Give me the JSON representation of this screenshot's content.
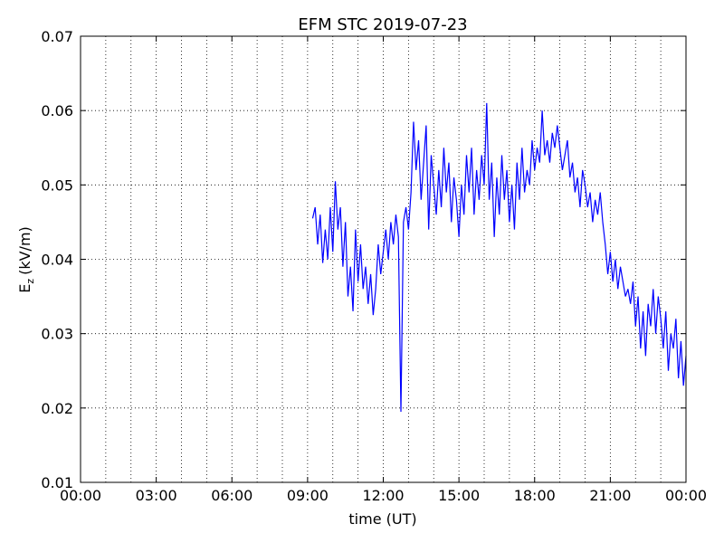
{
  "chart_data": {
    "type": "line",
    "title": "EFM STC    2019-07-23",
    "xlabel": "time (UT)",
    "ylabel": {
      "base": "E",
      "subscript": "z",
      "unit": "(kV/m)"
    },
    "xlim": [
      0,
      24
    ],
    "xticks": [
      {
        "value": 0,
        "label": "00:00"
      },
      {
        "value": 3,
        "label": "03:00"
      },
      {
        "value": 6,
        "label": "06:00"
      },
      {
        "value": 9,
        "label": "09:00"
      },
      {
        "value": 12,
        "label": "12:00"
      },
      {
        "value": 15,
        "label": "15:00"
      },
      {
        "value": 18,
        "label": "18:00"
      },
      {
        "value": 21,
        "label": "21:00"
      },
      {
        "value": 24,
        "label": "00:00"
      }
    ],
    "xgrid": [
      1,
      2,
      3,
      4,
      5,
      6,
      7,
      8,
      9,
      10,
      11,
      12,
      13,
      14,
      15,
      16,
      17,
      18,
      19,
      20,
      21,
      22,
      23
    ],
    "ylim": [
      0.01,
      0.07
    ],
    "yticks": [
      0.01,
      0.02,
      0.03,
      0.04,
      0.05,
      0.06,
      0.07
    ],
    "grid": true,
    "series": [
      {
        "name": "Ez",
        "color": "#0000ff",
        "x": [
          9.2,
          9.3,
          9.4,
          9.5,
          9.6,
          9.7,
          9.8,
          9.9,
          10.0,
          10.1,
          10.2,
          10.3,
          10.4,
          10.5,
          10.6,
          10.7,
          10.8,
          10.9,
          11.0,
          11.1,
          11.2,
          11.3,
          11.4,
          11.5,
          11.6,
          11.7,
          11.8,
          11.9,
          12.0,
          12.1,
          12.2,
          12.3,
          12.4,
          12.5,
          12.6,
          12.7,
          12.8,
          12.9,
          13.0,
          13.1,
          13.2,
          13.3,
          13.4,
          13.5,
          13.6,
          13.7,
          13.8,
          13.9,
          14.0,
          14.1,
          14.2,
          14.3,
          14.4,
          14.5,
          14.6,
          14.7,
          14.8,
          14.9,
          15.0,
          15.1,
          15.2,
          15.3,
          15.4,
          15.5,
          15.6,
          15.7,
          15.8,
          15.9,
          16.0,
          16.1,
          16.2,
          16.3,
          16.4,
          16.5,
          16.6,
          16.7,
          16.8,
          16.9,
          17.0,
          17.1,
          17.2,
          17.3,
          17.4,
          17.5,
          17.6,
          17.7,
          17.8,
          17.9,
          18.0,
          18.1,
          18.2,
          18.3,
          18.4,
          18.5,
          18.6,
          18.7,
          18.8,
          18.9,
          19.0,
          19.1,
          19.2,
          19.3,
          19.4,
          19.5,
          19.6,
          19.7,
          19.8,
          19.9,
          20.0,
          20.1,
          20.2,
          20.3,
          20.4,
          20.5,
          20.6,
          20.7,
          20.8,
          20.9,
          21.0,
          21.1,
          21.2,
          21.3,
          21.4,
          21.5,
          21.6,
          21.7,
          21.8,
          21.9,
          22.0,
          22.1,
          22.2,
          22.3,
          22.4,
          22.5,
          22.6,
          22.7,
          22.8,
          22.9,
          23.0,
          23.1,
          23.2,
          23.3,
          23.4,
          23.5,
          23.6,
          23.7,
          23.8,
          23.9,
          24.0
        ],
        "values": [
          0.0455,
          0.047,
          0.042,
          0.046,
          0.0395,
          0.044,
          0.04,
          0.047,
          0.041,
          0.0505,
          0.044,
          0.047,
          0.039,
          0.045,
          0.035,
          0.039,
          0.033,
          0.044,
          0.037,
          0.042,
          0.036,
          0.039,
          0.034,
          0.038,
          0.0325,
          0.036,
          0.042,
          0.038,
          0.041,
          0.044,
          0.04,
          0.045,
          0.042,
          0.046,
          0.043,
          0.0195,
          0.045,
          0.047,
          0.044,
          0.049,
          0.0585,
          0.052,
          0.056,
          0.048,
          0.053,
          0.058,
          0.044,
          0.054,
          0.05,
          0.046,
          0.052,
          0.047,
          0.055,
          0.049,
          0.053,
          0.045,
          0.051,
          0.048,
          0.043,
          0.05,
          0.046,
          0.054,
          0.049,
          0.055,
          0.046,
          0.052,
          0.048,
          0.054,
          0.05,
          0.061,
          0.048,
          0.053,
          0.043,
          0.051,
          0.046,
          0.054,
          0.048,
          0.052,
          0.045,
          0.05,
          0.044,
          0.053,
          0.048,
          0.055,
          0.049,
          0.052,
          0.05,
          0.056,
          0.052,
          0.055,
          0.053,
          0.06,
          0.054,
          0.056,
          0.053,
          0.057,
          0.055,
          0.058,
          0.055,
          0.052,
          0.054,
          0.056,
          0.051,
          0.053,
          0.049,
          0.051,
          0.047,
          0.052,
          0.05,
          0.047,
          0.049,
          0.045,
          0.048,
          0.046,
          0.049,
          0.045,
          0.042,
          0.038,
          0.041,
          0.037,
          0.04,
          0.036,
          0.039,
          0.037,
          0.035,
          0.036,
          0.034,
          0.037,
          0.031,
          0.035,
          0.028,
          0.033,
          0.027,
          0.034,
          0.031,
          0.036,
          0.03,
          0.035,
          0.032,
          0.028,
          0.033,
          0.025,
          0.03,
          0.028,
          0.032,
          0.024,
          0.029,
          0.023,
          0.027
        ]
      }
    ]
  }
}
